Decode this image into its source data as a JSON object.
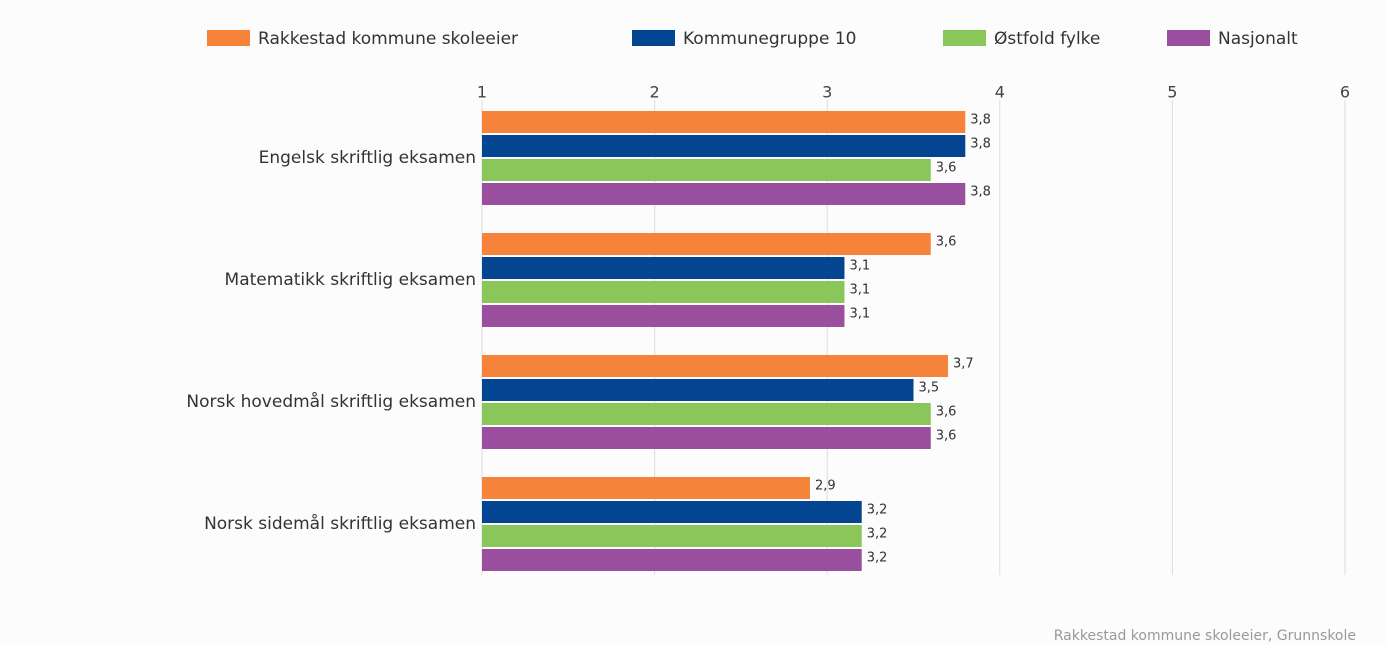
{
  "chart_data": {
    "type": "hbar",
    "categories": [
      "Engelsk skriftlig eksamen",
      "Matematikk skriftlig eksamen",
      "Norsk hovedmål skriftlig eksamen",
      "Norsk sidemål skriftlig eksamen"
    ],
    "series": [
      {
        "name": "Rakkestad kommune skoleeier",
        "color": "#f5843a",
        "values": [
          3.8,
          3.6,
          3.7,
          2.9
        ],
        "value_labels": [
          "3,8",
          "3,6",
          "3,7",
          "2,9"
        ]
      },
      {
        "name": "Kommunegruppe 10",
        "color": "#034591",
        "values": [
          3.8,
          3.1,
          3.5,
          3.2
        ],
        "value_labels": [
          "3,8",
          "3,1",
          "3,5",
          "3,2"
        ]
      },
      {
        "name": "Østfold fylke",
        "color": "#8bc65a",
        "values": [
          3.6,
          3.1,
          3.6,
          3.2
        ],
        "value_labels": [
          "3,6",
          "3,1",
          "3,6",
          "3,2"
        ]
      },
      {
        "name": "Nasjonalt",
        "color": "#9a4f9e",
        "values": [
          3.8,
          3.1,
          3.6,
          3.2
        ],
        "value_labels": [
          "3,8",
          "3,1",
          "3,6",
          "3,2"
        ]
      }
    ],
    "xlim": [
      1,
      6
    ],
    "xticks": [
      1,
      2,
      3,
      4,
      5,
      6
    ],
    "grid": true,
    "legend": "top",
    "source": "Rakkestad kommune skoleeier, Grunnskole"
  }
}
